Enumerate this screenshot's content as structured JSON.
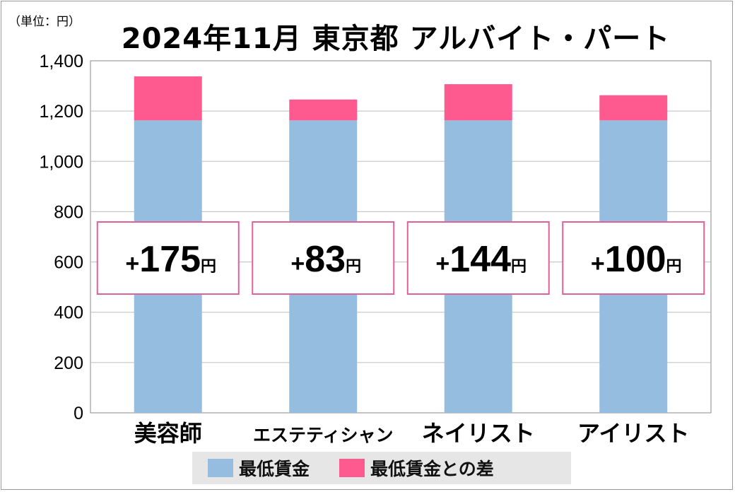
{
  "unit_note": "（単位：円）",
  "chart_data": {
    "type": "bar",
    "stacked": true,
    "title": "2024年11月 東京都 アルバイト・パート",
    "categories": [
      "美容師",
      "エステティシャン",
      "ネイリスト",
      "アイリスト"
    ],
    "series": [
      {
        "name": "最低賃金",
        "color": "#95bddf",
        "values": [
          1163,
          1163,
          1163,
          1163
        ]
      },
      {
        "name": "最低賃金との差",
        "color": "#ff5a8f",
        "values": [
          175,
          83,
          144,
          100
        ]
      }
    ],
    "diff_labels": [
      {
        "sign": "+",
        "value": "175",
        "unit": "円"
      },
      {
        "sign": "+",
        "value": "83",
        "unit": "円"
      },
      {
        "sign": "+",
        "value": "144",
        "unit": "円"
      },
      {
        "sign": "+",
        "value": "100",
        "unit": "円"
      }
    ],
    "yticks": [
      "0",
      "200",
      "400",
      "600",
      "800",
      "1,000",
      "1,200",
      "1,400"
    ],
    "ylim": [
      0,
      1400
    ],
    "grid": true,
    "legend_position": "bottom"
  },
  "colors": {
    "label_border": "#e0609a",
    "grid": "#bdbdbd"
  }
}
